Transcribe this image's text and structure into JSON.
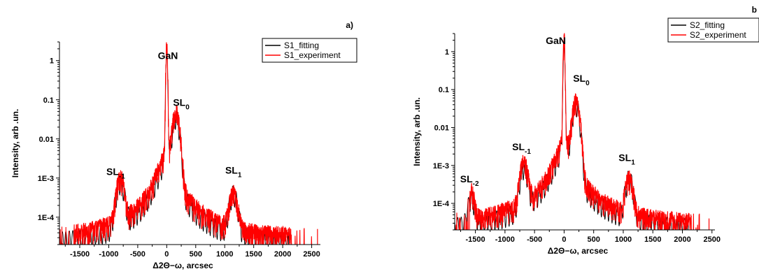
{
  "chart_data": [
    {
      "type": "line",
      "panel_label": "a)",
      "xlabel": "Δ2Θ−ω, arcsec",
      "ylabel": "Intensity, arb .un.",
      "xlim": [
        -1850,
        2650
      ],
      "ylim": [
        2e-05,
        3
      ],
      "yscale": "log",
      "xticks": [
        -1500,
        -1000,
        -500,
        0,
        500,
        1000,
        1500,
        2000,
        2500
      ],
      "yticks": [
        0.0001,
        0.001,
        0.01,
        0.1,
        1
      ],
      "ytick_labels": [
        "1E-4",
        "1E-3",
        "0.01",
        "0.1",
        "1"
      ],
      "grid": false,
      "legend": "top-right",
      "series": [
        {
          "name": "S1_fitting",
          "color": "#000000",
          "peaks": [
            {
              "x": -800,
              "y": 0.001,
              "width": 55
            },
            {
              "x": 0,
              "y": 1.5,
              "width": 12
            },
            {
              "x": 160,
              "y": 0.05,
              "width": 45
            },
            {
              "x": 1150,
              "y": 0.0005,
              "width": 55
            }
          ],
          "fringe_period": 60
        },
        {
          "name": "S1_experiment",
          "color": "#ff0000",
          "peaks": [
            {
              "x": -800,
              "y": 0.00095,
              "width": 50
            },
            {
              "x": 0,
              "y": 2.2,
              "width": 10
            },
            {
              "x": 160,
              "y": 0.05,
              "width": 45
            },
            {
              "x": 1150,
              "y": 0.00035,
              "width": 55
            }
          ],
          "spike": {
            "x": 2600,
            "y": 5e-05
          }
        }
      ],
      "annotations": [
        {
          "base": "GaN",
          "sub": "",
          "x": 20,
          "y": 1.1
        },
        {
          "base": "SL",
          "sub": "0",
          "x": 250,
          "y": 0.07
        },
        {
          "base": "SL",
          "sub": "-1",
          "x": -880,
          "y": 0.0012
        },
        {
          "base": "SL",
          "sub": "1",
          "x": 1150,
          "y": 0.0013
        }
      ]
    },
    {
      "type": "line",
      "panel_label": "b",
      "xlabel": "Δ2Θ−ω, arcsec",
      "ylabel": "Intensity, arb .un.",
      "xlim": [
        -1850,
        2550
      ],
      "ylim": [
        2e-05,
        3
      ],
      "yscale": "log",
      "xticks": [
        -1500,
        -1000,
        -500,
        0,
        500,
        1000,
        1500,
        2000,
        2500
      ],
      "yticks": [
        0.0001,
        0.001,
        0.01,
        0.1,
        1
      ],
      "ytick_labels": [
        "1E-4",
        "1E-3",
        "0.01",
        "0.1",
        "1"
      ],
      "grid": false,
      "legend": "top-right",
      "series": [
        {
          "name": "S2_fitting",
          "color": "#000000",
          "peaks": [
            {
              "x": -1570,
              "y": 0.00015,
              "width": 45
            },
            {
              "x": -680,
              "y": 0.0011,
              "width": 50
            },
            {
              "x": 0,
              "y": 1.3,
              "width": 12
            },
            {
              "x": 200,
              "y": 0.055,
              "width": 45
            },
            {
              "x": 1100,
              "y": 0.0006,
              "width": 50
            }
          ],
          "fringe_period": 60
        },
        {
          "name": "S2_experiment",
          "color": "#ff0000",
          "peaks": [
            {
              "x": -1570,
              "y": 0.00018,
              "width": 40
            },
            {
              "x": -680,
              "y": 0.0011,
              "width": 50
            },
            {
              "x": 0,
              "y": 2.2,
              "width": 10
            },
            {
              "x": 200,
              "y": 0.05,
              "width": 45
            },
            {
              "x": 1100,
              "y": 0.0004,
              "width": 50
            }
          ],
          "spike": {
            "x": 2450,
            "y": 4e-05
          }
        }
      ],
      "annotations": [
        {
          "base": "GaN",
          "sub": "",
          "x": -140,
          "y": 1.6
        },
        {
          "base": "SL",
          "sub": "0",
          "x": 290,
          "y": 0.16
        },
        {
          "base": "SL",
          "sub": "-1",
          "x": -720,
          "y": 0.0025
        },
        {
          "base": "SL",
          "sub": "-2",
          "x": -1600,
          "y": 0.00036
        },
        {
          "base": "SL",
          "sub": "1",
          "x": 1060,
          "y": 0.0013
        }
      ]
    }
  ]
}
